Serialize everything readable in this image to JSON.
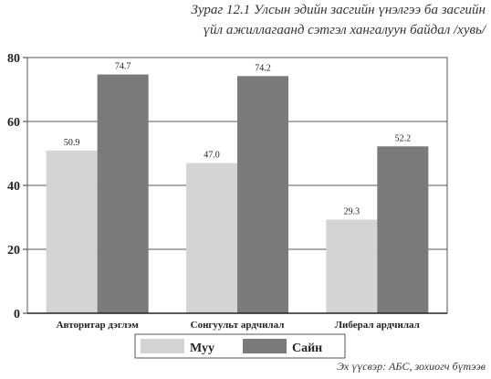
{
  "caption": {
    "line1": "Зураг 12.1 Улсын эдийн засгийн үнэлгээ ба засгийн",
    "line2": "үйл ажиллагаанд сэтгэл хангалуун байдал /хувь/"
  },
  "source": "Эх үүсвэр: АБС, зохиогч бүтээв",
  "colors": {
    "bad": "#d4d4d4",
    "good": "#7a7a7c",
    "grid": "#555555"
  },
  "chart_data": {
    "type": "bar",
    "categories": [
      "Авторитар дэглэм",
      "Сонгуульт ардчилал",
      "Либерал ардчилал"
    ],
    "series": [
      {
        "name": "Муу",
        "values": [
          50.9,
          47.0,
          29.3
        ],
        "labels": [
          "50.9",
          "47.0",
          "29.3"
        ]
      },
      {
        "name": "Сайн",
        "values": [
          74.7,
          74.2,
          52.2
        ],
        "labels": [
          "74.7",
          "74.2",
          "52.2"
        ]
      }
    ],
    "yticks": [
      0,
      20,
      40,
      60,
      80
    ],
    "ylim": [
      0,
      80
    ],
    "grid": true,
    "legend": "bottom"
  }
}
